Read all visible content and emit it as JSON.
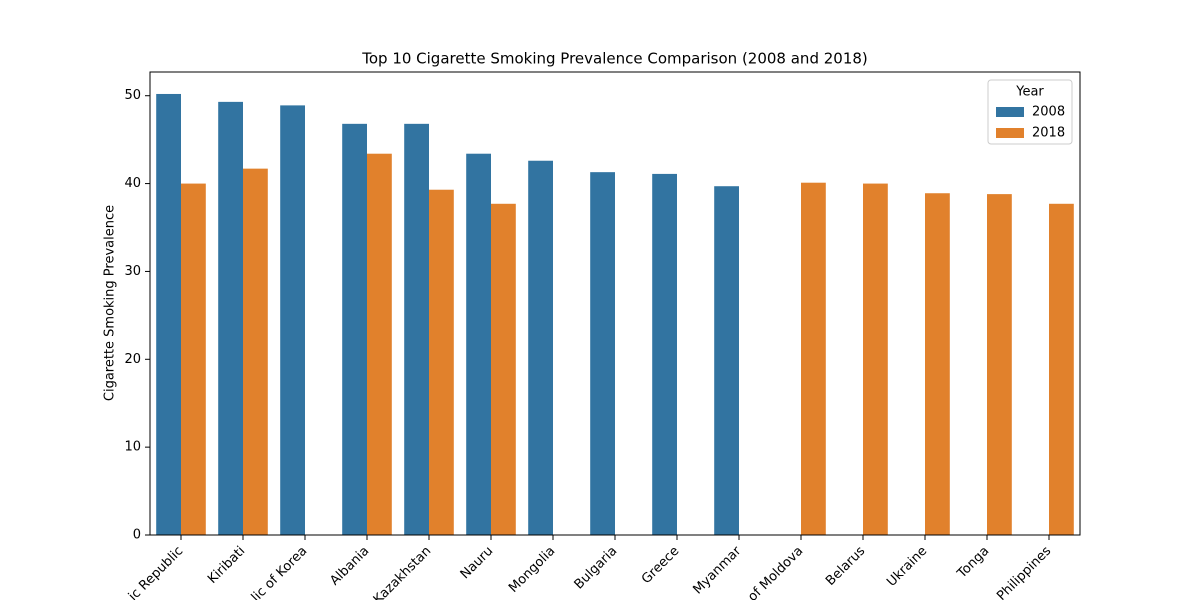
{
  "chart_data": {
    "type": "bar",
    "title": "Top 10 Cigarette Smoking Prevalence Comparison (2008 and 2018)",
    "y_label": "Cigarette Smoking Prevalence",
    "categories": [
      "ic Republic",
      "Kiribati",
      "lic of Korea",
      "Albania",
      "Kazakhstan",
      "Nauru",
      "Mongolia",
      "Bulgaria",
      "Greece",
      "Myanmar",
      "of Moldova",
      "Belarus",
      "Ukraine",
      "Tonga",
      "Philippines"
    ],
    "series": [
      {
        "name": "2008",
        "color": "#3274a1",
        "values": [
          50.2,
          49.3,
          48.9,
          46.8,
          46.8,
          43.4,
          42.6,
          41.3,
          41.1,
          39.7,
          null,
          null,
          null,
          null,
          null
        ]
      },
      {
        "name": "2018",
        "color": "#e1812c",
        "values": [
          40.0,
          41.7,
          null,
          43.4,
          39.3,
          37.7,
          null,
          null,
          null,
          null,
          40.1,
          40.0,
          38.9,
          38.8,
          37.7
        ]
      }
    ],
    "legend_title": "Year",
    "legend": "upper right",
    "ylim": [
      0,
      52.7
    ],
    "yticks": [
      0,
      10,
      20,
      30,
      40,
      50
    ]
  }
}
